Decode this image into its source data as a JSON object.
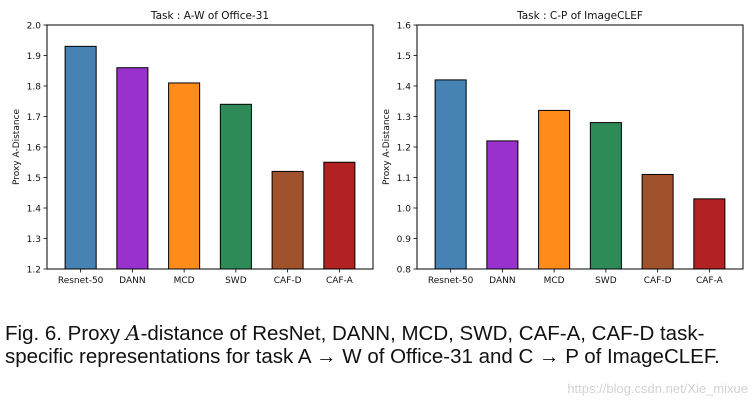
{
  "chart_data": [
    {
      "type": "bar",
      "title": "Task : A-W of Office-31",
      "xlabel": "",
      "ylabel": "Proxy A-Distance",
      "categories": [
        "Resnet-50",
        "DANN",
        "MCD",
        "SWD",
        "CAF-D",
        "CAF-A"
      ],
      "values": [
        1.93,
        1.86,
        1.81,
        1.74,
        1.52,
        1.55
      ],
      "colors": [
        "#4682b4",
        "#9932cc",
        "#ff8c1a",
        "#2e8b57",
        "#a0522d",
        "#b22222"
      ],
      "ylim": [
        1.2,
        2.0
      ],
      "yticks": [
        "1.2",
        "1.3",
        "1.4",
        "1.5",
        "1.6",
        "1.7",
        "1.8",
        "1.9",
        "2.0"
      ],
      "grid": false
    },
    {
      "type": "bar",
      "title": "Task : C-P of ImageCLEF",
      "xlabel": "",
      "ylabel": "Proxy A-Distance",
      "categories": [
        "Resnet-50",
        "DANN",
        "MCD",
        "SWD",
        "CAF-D",
        "CAF-A"
      ],
      "values": [
        1.42,
        1.22,
        1.32,
        1.28,
        1.11,
        1.03
      ],
      "colors": [
        "#4682b4",
        "#9932cc",
        "#ff8c1a",
        "#2e8b57",
        "#a0522d",
        "#b22222"
      ],
      "ylim": [
        0.8,
        1.6
      ],
      "yticks": [
        "0.8",
        "0.9",
        "1.0",
        "1.1",
        "1.2",
        "1.3",
        "1.4",
        "1.5",
        "1.6"
      ],
      "grid": false
    }
  ],
  "caption": {
    "prefix": "Fig. 6. Proxy ",
    "script_letter": "A",
    "rest": "-distance of ResNet, DANN, MCD, SWD, CAF-A, CAF-D task-specific representations for task A → W of Office-31 and C → P of ImageCLEF."
  },
  "watermark": "https://blog.csdn.net/Xie_mixue"
}
